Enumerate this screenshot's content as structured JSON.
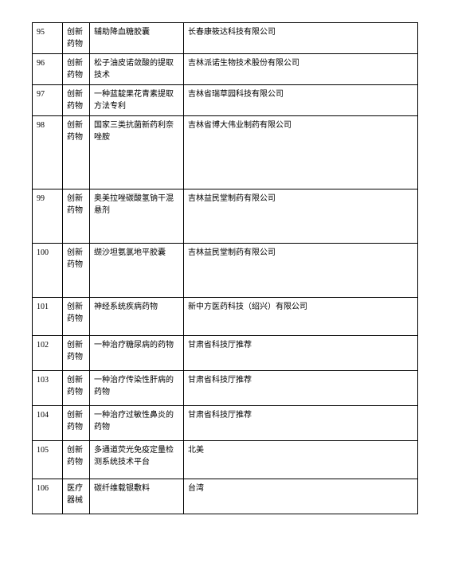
{
  "table": {
    "rows": [
      {
        "num": "95",
        "category": "创新药物",
        "description": "辅助降血糖胶囊",
        "organization": "长春康筱达科技有限公司",
        "height": "h-sm"
      },
      {
        "num": "96",
        "category": "创新药物",
        "description": "松子油皮诺敛酸的提取技术",
        "organization": "吉林派诺生物技术股份有限公司",
        "height": "h-sm"
      },
      {
        "num": "97",
        "category": "创新药物",
        "description": "一种蓝靛果花青素提取方法专利",
        "organization": "吉林省瑞草园科技有限公司",
        "height": "h-sm"
      },
      {
        "num": "98",
        "category": "创新药物",
        "description": "国家三类抗菌新药利奈唑胺",
        "organization": "吉林省博大伟业制药有限公司",
        "height": "h-lg"
      },
      {
        "num": "99",
        "category": "创新药物",
        "description": "奥美拉唑碳酸氢钠干混悬剂",
        "organization": "吉林益民堂制药有限公司",
        "height": "h-md"
      },
      {
        "num": "100",
        "category": "创新药物",
        "description": "缬沙坦氨氯地平胶囊",
        "organization": "吉林益民堂制药有限公司",
        "height": "h-md"
      },
      {
        "num": "101",
        "category": "创新药物",
        "description": "神经系统疾病药物",
        "organization": "新中方医药科技（绍兴）有限公司",
        "height": "h-50"
      },
      {
        "num": "102",
        "category": "创新药物",
        "description": "一种治疗糖尿病的药物",
        "organization": "甘肃省科技厅推荐",
        "height": "h-xl"
      },
      {
        "num": "103",
        "category": "创新药物",
        "description": "一种治疗传染性肝病的药物",
        "organization": "甘肃省科技厅推荐",
        "height": "h-xl"
      },
      {
        "num": "104",
        "category": "创新药物",
        "description": "一种治疗过敏性鼻炎的药物",
        "organization": "甘肃省科技厅推荐",
        "height": "h-xl"
      },
      {
        "num": "105",
        "category": "创新药物",
        "description": "多通道荧光免疫定量检测系统技术平台",
        "organization": "北美",
        "height": "h-50"
      },
      {
        "num": "106",
        "category": "医疗器械",
        "description": "碳纤维载银敷料",
        "organization": "台湾",
        "height": "h-xl"
      }
    ]
  }
}
